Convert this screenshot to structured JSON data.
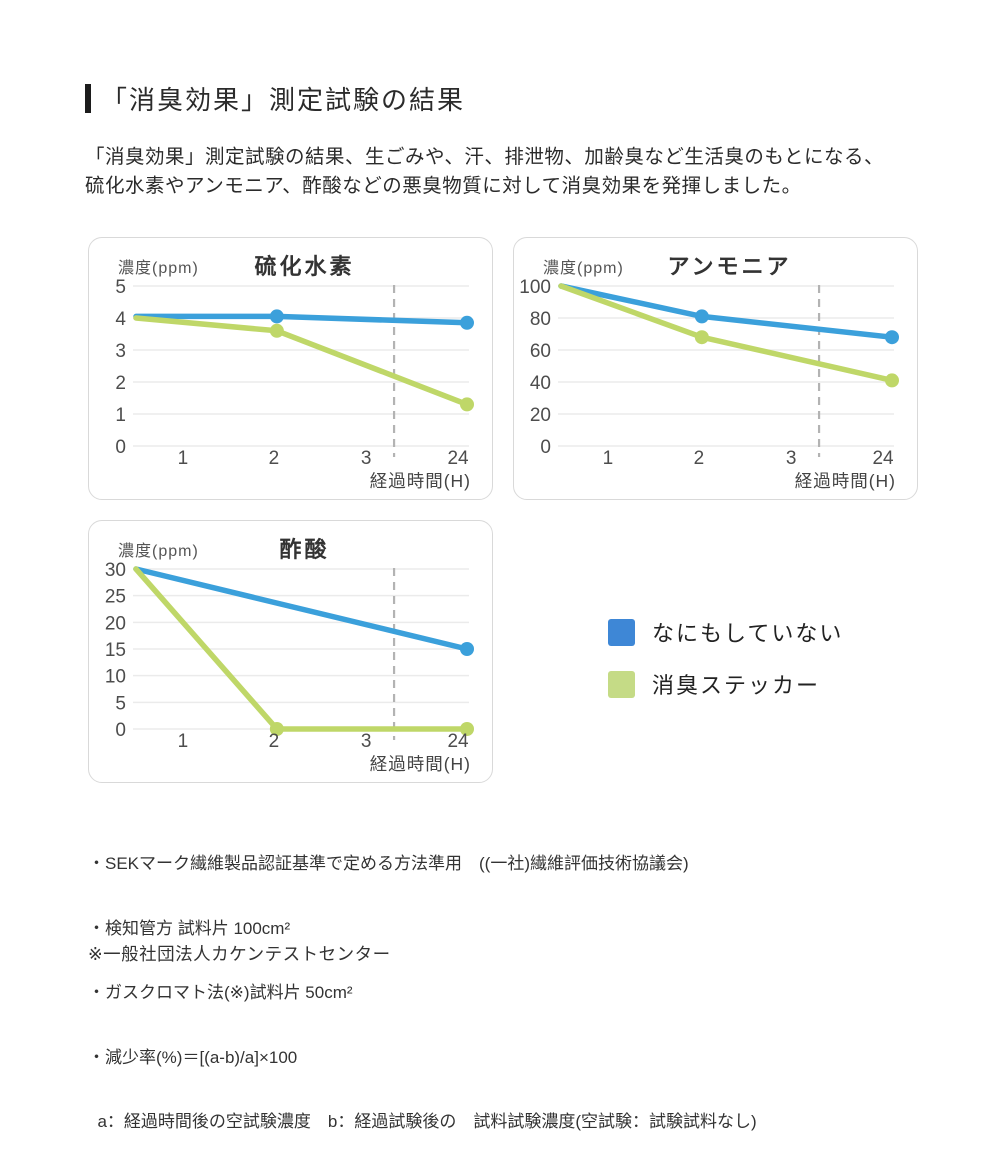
{
  "header": {
    "title": "「消臭効果」測定試験の結果"
  },
  "intro": {
    "lines": [
      "「消臭効果」測定試験の結果、生ごみや、汗、排泄物、加齢臭など生活臭のもとになる、",
      "硫化水素やアンモニア、酢酸などの悪臭物質に対して消臭効果を発揮しました。"
    ]
  },
  "legend": {
    "items": [
      {
        "label": "なにもしていない",
        "color": "#3E87D6"
      },
      {
        "label": "消臭ステッカー",
        "color": "#C5DB86"
      }
    ]
  },
  "chart_data": [
    {
      "type": "line",
      "title": "硫化水素",
      "ylabel": "濃度(ppm)",
      "xlabel": "経過時間(H)",
      "x_ticks": [
        "1",
        "2",
        "3",
        "24"
      ],
      "y_ticks": [
        0,
        1,
        2,
        3,
        4,
        5
      ],
      "ylim": [
        0,
        5
      ],
      "axis_break_between": [
        "3",
        "24"
      ],
      "grid": true,
      "series": [
        {
          "name": "なにもしていない",
          "color": "#3BA0DB",
          "points": [
            {
              "t": 0,
              "v": 4.05,
              "dot": false
            },
            {
              "t": 2,
              "v": 4.05,
              "dot": true
            },
            {
              "t": 24,
              "v": 3.85,
              "dot": true
            }
          ]
        },
        {
          "name": "消臭ステッカー",
          "color": "#BFD768",
          "points": [
            {
              "t": 0,
              "v": 4.0,
              "dot": false
            },
            {
              "t": 2,
              "v": 3.6,
              "dot": true
            },
            {
              "t": 24,
              "v": 1.3,
              "dot": true
            }
          ]
        }
      ]
    },
    {
      "type": "line",
      "title": "アンモニア",
      "ylabel": "濃度(ppm)",
      "xlabel": "経過時間(H)",
      "x_ticks": [
        "1",
        "2",
        "3",
        "24"
      ],
      "y_ticks": [
        0,
        20,
        40,
        60,
        80,
        100
      ],
      "ylim": [
        0,
        100
      ],
      "axis_break_between": [
        "3",
        "24"
      ],
      "grid": true,
      "series": [
        {
          "name": "なにもしていない",
          "color": "#3BA0DB",
          "points": [
            {
              "t": 0,
              "v": 100,
              "dot": false
            },
            {
              "t": 2,
              "v": 81,
              "dot": true
            },
            {
              "t": 24,
              "v": 68,
              "dot": true
            }
          ]
        },
        {
          "name": "消臭ステッカー",
          "color": "#BFD768",
          "points": [
            {
              "t": 0,
              "v": 100,
              "dot": false
            },
            {
              "t": 2,
              "v": 68,
              "dot": true
            },
            {
              "t": 24,
              "v": 41,
              "dot": true
            }
          ]
        }
      ]
    },
    {
      "type": "line",
      "title": "酢酸",
      "ylabel": "濃度(ppm)",
      "xlabel": "経過時間(H)",
      "x_ticks": [
        "1",
        "2",
        "3",
        "24"
      ],
      "y_ticks": [
        0,
        5,
        10,
        15,
        20,
        25,
        30
      ],
      "ylim": [
        0,
        30
      ],
      "axis_break_between": [
        "3",
        "24"
      ],
      "grid": true,
      "series": [
        {
          "name": "なにもしていない",
          "color": "#3BA0DB",
          "points": [
            {
              "t": 0,
              "v": 30,
              "dot": false
            },
            {
              "t": 24,
              "v": 15,
              "dot": true
            }
          ]
        },
        {
          "name": "消臭ステッカー",
          "color": "#BFD768",
          "points": [
            {
              "t": 0,
              "v": 30,
              "dot": false
            },
            {
              "t": 2,
              "v": 0,
              "dot": true
            },
            {
              "t": 24,
              "v": 0,
              "dot": true
            }
          ]
        }
      ]
    }
  ],
  "notes": {
    "lines": [
      "・SEKマーク繊維製品認証基準で定める方法準用　((一社)繊維評価技術協議会)",
      "・検知管方 試料片 100cm²",
      "・ガスクロマト法(※)試料片 50cm²",
      "・減少率(%)＝[(a-b)/a]×100",
      "  a：経過時間後の空試験濃度　b：経過試験後の　試料試験濃度(空試験：試験試料なし)"
    ],
    "org": "※一般社団法人カケンテストセンター"
  }
}
